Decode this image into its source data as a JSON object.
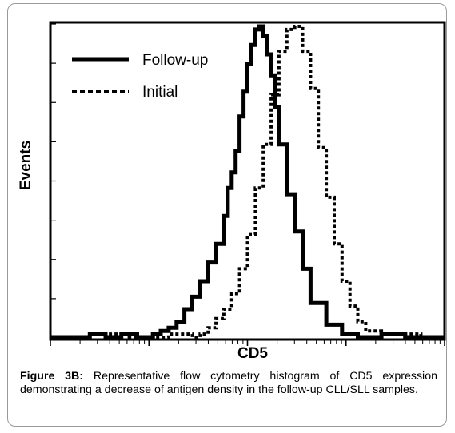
{
  "chart_data": {
    "type": "line",
    "xlabel": "CD5",
    "ylabel": "Events",
    "x_scale": "log",
    "xlim": [
      0,
      100
    ],
    "ylim": [
      0,
      100
    ],
    "legend_position": "top-left",
    "grid": false,
    "series": [
      {
        "name": "Follow-up",
        "style": "solid",
        "color": "#000000",
        "x": [
          0,
          6,
          10,
          14,
          18,
          22,
          26,
          28,
          30,
          32,
          34,
          36,
          38,
          40,
          42,
          44,
          45,
          46,
          47,
          48,
          49,
          50,
          51,
          52,
          53,
          54,
          55,
          56,
          57,
          58,
          60,
          62,
          64,
          66,
          70,
          74,
          78,
          84,
          90,
          100
        ],
        "y": [
          0,
          0,
          1,
          0,
          1,
          0,
          1,
          2,
          3,
          5,
          9,
          13,
          18,
          24,
          30,
          39,
          48,
          53,
          60,
          71,
          79,
          88,
          94,
          99,
          100,
          97,
          91,
          84,
          74,
          62,
          46,
          34,
          22,
          11,
          4,
          1,
          0,
          1,
          0,
          0
        ]
      },
      {
        "name": "Initial",
        "style": "dashed",
        "color": "#000000",
        "x": [
          0,
          10,
          20,
          30,
          36,
          38,
          40,
          42,
          44,
          46,
          48,
          50,
          52,
          54,
          56,
          58,
          60,
          62,
          64,
          66,
          68,
          70,
          72,
          74,
          76,
          78,
          80,
          84,
          88,
          94,
          100
        ],
        "y": [
          0,
          1,
          0,
          1,
          0,
          1,
          3,
          6,
          9,
          14,
          22,
          33,
          48,
          62,
          78,
          92,
          99,
          100,
          92,
          80,
          61,
          45,
          30,
          18,
          10,
          5,
          2,
          1,
          1,
          0,
          0
        ]
      }
    ]
  },
  "caption": {
    "label": "Figure 3B:",
    "text": " Representative flow cytometry histogram of CD5 expression demonstrating a decrease of antigen density in the follow-up CLL/SLL samples."
  }
}
